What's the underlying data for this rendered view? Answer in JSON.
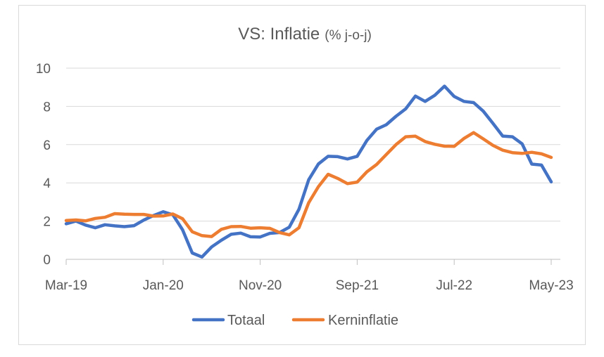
{
  "chart_data": {
    "type": "line",
    "title": "VS: Inflatie",
    "subtitle": "(% j-o-j)",
    "xlabel": "",
    "ylabel": "",
    "ylim": [
      0,
      10
    ],
    "yticks": [
      "0",
      "2",
      "4",
      "6",
      "8",
      "10"
    ],
    "x_start": "Mar-19",
    "x_tick_labels": [
      "Mar-19",
      "Jan-20",
      "Nov-20",
      "Sep-21",
      "Jul-22",
      "May-23"
    ],
    "x": [
      "Mar-19",
      "Apr-19",
      "May-19",
      "Jun-19",
      "Jul-19",
      "Aug-19",
      "Sep-19",
      "Oct-19",
      "Nov-19",
      "Dec-19",
      "Jan-20",
      "Feb-20",
      "Mar-20",
      "Apr-20",
      "May-20",
      "Jun-20",
      "Jul-20",
      "Aug-20",
      "Sep-20",
      "Oct-20",
      "Nov-20",
      "Dec-20",
      "Jan-21",
      "Feb-21",
      "Mar-21",
      "Apr-21",
      "May-21",
      "Jun-21",
      "Jul-21",
      "Aug-21",
      "Sep-21",
      "Oct-21",
      "Nov-21",
      "Dec-21",
      "Jan-22",
      "Feb-22",
      "Mar-22",
      "Apr-22",
      "May-22",
      "Jun-22",
      "Jul-22",
      "Aug-22",
      "Sep-22",
      "Oct-22",
      "Nov-22",
      "Dec-22",
      "Jan-23",
      "Feb-23",
      "Mar-23",
      "Apr-23",
      "May-23"
    ],
    "grid": true,
    "legend_position": "bottom",
    "series": [
      {
        "name": "Totaal",
        "color": "#4472c4",
        "values": [
          1.86,
          2.0,
          1.79,
          1.65,
          1.81,
          1.75,
          1.71,
          1.76,
          2.05,
          2.29,
          2.49,
          2.33,
          1.54,
          0.33,
          0.12,
          0.65,
          1.0,
          1.31,
          1.37,
          1.18,
          1.17,
          1.36,
          1.4,
          1.68,
          2.62,
          4.16,
          4.99,
          5.39,
          5.37,
          5.25,
          5.39,
          6.22,
          6.81,
          7.04,
          7.48,
          7.87,
          8.54,
          8.26,
          8.58,
          9.06,
          8.52,
          8.26,
          8.2,
          7.75,
          7.11,
          6.45,
          6.41,
          6.04,
          4.98,
          4.93,
          4.05
        ]
      },
      {
        "name": "Kerninflatie",
        "color": "#ed7d31",
        "values": [
          2.03,
          2.06,
          2.01,
          2.14,
          2.2,
          2.39,
          2.36,
          2.35,
          2.35,
          2.26,
          2.27,
          2.37,
          2.12,
          1.44,
          1.24,
          1.19,
          1.57,
          1.71,
          1.72,
          1.63,
          1.65,
          1.62,
          1.4,
          1.28,
          1.65,
          2.96,
          3.8,
          4.45,
          4.23,
          3.96,
          4.04,
          4.58,
          4.96,
          5.48,
          6.0,
          6.41,
          6.44,
          6.16,
          6.02,
          5.92,
          5.91,
          6.32,
          6.63,
          6.3,
          5.96,
          5.71,
          5.58,
          5.54,
          5.6,
          5.52,
          5.33
        ]
      }
    ]
  }
}
